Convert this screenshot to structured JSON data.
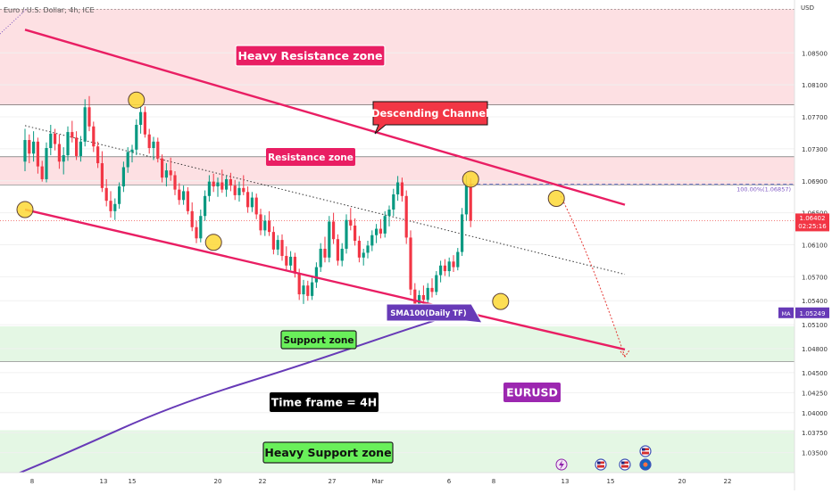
{
  "chart_data": {
    "type": "candlestick",
    "symbol_label": "Euro / U.S. Dollar, 4h, ICE",
    "currency": "USD",
    "y_ticks": [
      "1.08500",
      "1.08100",
      "1.07700",
      "1.07300",
      "1.06900",
      "1.06500",
      "1.06100",
      "1.05700",
      "1.05400",
      "1.05100",
      "1.04800",
      "1.04500",
      "1.04250",
      "1.04000",
      "1.03750",
      "1.03500"
    ],
    "x_ticks": [
      "8",
      "13",
      "15",
      "20",
      "22",
      "27",
      "Mar",
      "6",
      "8",
      "13",
      "15",
      "20",
      "22"
    ],
    "ylim": [
      1.0325,
      1.0905
    ],
    "price_tag": {
      "value": "1.06402",
      "countdown": "02:25:16",
      "price": 1.06402
    },
    "ma_tag": {
      "label": "MA",
      "value": "1.05249",
      "price": 1.05249
    },
    "fib_label": "100.00%(1.06857)",
    "fib_price": 1.06857,
    "zones": [
      {
        "label": "Heavy Resistance zone",
        "from": 1.0785,
        "to": 1.0905,
        "kind": "resistance"
      },
      {
        "label": "Resistance zone",
        "from": 1.0685,
        "to": 1.072,
        "kind": "resistance"
      },
      {
        "label": "Support zone",
        "from": 1.0464,
        "to": 1.0508,
        "kind": "support"
      },
      {
        "label": "Heavy Support zone",
        "from": 1.0325,
        "to": 1.0378,
        "kind": "support"
      }
    ],
    "annotations": {
      "channel": "Descending Channel",
      "sma": "SMA100(Daily TF)",
      "timeframe": "Time frame = 4H",
      "pair": "EURUSD"
    },
    "ohlc": [
      [
        1.0714,
        1.0755,
        1.0702,
        1.0741
      ],
      [
        1.0741,
        1.0748,
        1.0712,
        1.0724
      ],
      [
        1.0724,
        1.0752,
        1.0714,
        1.0739
      ],
      [
        1.0739,
        1.0744,
        1.0699,
        1.0708
      ],
      [
        1.0708,
        1.0715,
        1.0689,
        1.0692
      ],
      [
        1.0692,
        1.0738,
        1.0688,
        1.0731
      ],
      [
        1.0731,
        1.076,
        1.0722,
        1.0749
      ],
      [
        1.0749,
        1.0755,
        1.0728,
        1.0736
      ],
      [
        1.0736,
        1.0748,
        1.0705,
        1.0714
      ],
      [
        1.0714,
        1.0732,
        1.0698,
        1.0722
      ],
      [
        1.0722,
        1.0758,
        1.0715,
        1.0751
      ],
      [
        1.0751,
        1.0765,
        1.0738,
        1.0744
      ],
      [
        1.0744,
        1.0752,
        1.0716,
        1.0721
      ],
      [
        1.0721,
        1.0746,
        1.0714,
        1.0739
      ],
      [
        1.0739,
        1.0792,
        1.0733,
        1.0782
      ],
      [
        1.0782,
        1.0796,
        1.0752,
        1.0758
      ],
      [
        1.0758,
        1.0764,
        1.0726,
        1.0733
      ],
      [
        1.0733,
        1.0739,
        1.0706,
        1.0712
      ],
      [
        1.0712,
        1.0727,
        1.0676,
        1.0681
      ],
      [
        1.0681,
        1.0692,
        1.0658,
        1.0665
      ],
      [
        1.0665,
        1.0677,
        1.0644,
        1.0652
      ],
      [
        1.0652,
        1.0668,
        1.0641,
        1.0661
      ],
      [
        1.0661,
        1.0688,
        1.0655,
        1.0683
      ],
      [
        1.0683,
        1.0714,
        1.0676,
        1.0707
      ],
      [
        1.0707,
        1.0732,
        1.07,
        1.0726
      ],
      [
        1.0726,
        1.0735,
        1.0713,
        1.0729
      ],
      [
        1.0729,
        1.0767,
        1.0722,
        1.076
      ],
      [
        1.076,
        1.0784,
        1.0749,
        1.0776
      ],
      [
        1.0776,
        1.0783,
        1.0744,
        1.0748
      ],
      [
        1.0748,
        1.0755,
        1.0724,
        1.0731
      ],
      [
        1.0731,
        1.0745,
        1.0716,
        1.0739
      ],
      [
        1.0739,
        1.0744,
        1.0713,
        1.0718
      ],
      [
        1.0718,
        1.0723,
        1.0688,
        1.0694
      ],
      [
        1.0694,
        1.0712,
        1.0683,
        1.0703
      ],
      [
        1.0703,
        1.0719,
        1.069,
        1.0697
      ],
      [
        1.0697,
        1.0702,
        1.0672,
        1.0679
      ],
      [
        1.0679,
        1.0687,
        1.066,
        1.0666
      ],
      [
        1.0666,
        1.0684,
        1.066,
        1.0677
      ],
      [
        1.0677,
        1.0682,
        1.0648,
        1.0652
      ],
      [
        1.0652,
        1.0663,
        1.0627,
        1.0632
      ],
      [
        1.0632,
        1.064,
        1.0612,
        1.0618
      ],
      [
        1.0618,
        1.0654,
        1.0613,
        1.0646
      ],
      [
        1.0646,
        1.0678,
        1.064,
        1.0671
      ],
      [
        1.0671,
        1.0697,
        1.0664,
        1.0689
      ],
      [
        1.0689,
        1.0699,
        1.0676,
        1.0683
      ],
      [
        1.0683,
        1.0694,
        1.067,
        1.0688
      ],
      [
        1.0688,
        1.0704,
        1.0675,
        1.0679
      ],
      [
        1.0679,
        1.0696,
        1.067,
        1.0692
      ],
      [
        1.0692,
        1.07,
        1.0677,
        1.0684
      ],
      [
        1.0684,
        1.0691,
        1.0666,
        1.0672
      ],
      [
        1.0672,
        1.0689,
        1.0664,
        1.0681
      ],
      [
        1.0681,
        1.0697,
        1.0672,
        1.0676
      ],
      [
        1.0676,
        1.0683,
        1.065,
        1.0657
      ],
      [
        1.0657,
        1.0676,
        1.0651,
        1.0669
      ],
      [
        1.0669,
        1.0674,
        1.0642,
        1.0648
      ],
      [
        1.0648,
        1.0655,
        1.0622,
        1.0628
      ],
      [
        1.0628,
        1.0647,
        1.0621,
        1.064
      ],
      [
        1.064,
        1.0652,
        1.0621,
        1.0626
      ],
      [
        1.0626,
        1.0633,
        1.0598,
        1.0604
      ],
      [
        1.0604,
        1.0622,
        1.0597,
        1.0616
      ],
      [
        1.0616,
        1.0623,
        1.059,
        1.0596
      ],
      [
        1.0596,
        1.0608,
        1.0578,
        1.0584
      ],
      [
        1.0584,
        1.0602,
        1.0578,
        1.0595
      ],
      [
        1.0595,
        1.06,
        1.0569,
        1.0574
      ],
      [
        1.0574,
        1.058,
        1.0541,
        1.0548
      ],
      [
        1.0548,
        1.0566,
        1.0536,
        1.0559
      ],
      [
        1.0559,
        1.0565,
        1.054,
        1.0546
      ],
      [
        1.0546,
        1.057,
        1.0541,
        1.0563
      ],
      [
        1.0563,
        1.0588,
        1.0556,
        1.0582
      ],
      [
        1.0582,
        1.0612,
        1.0576,
        1.0605
      ],
      [
        1.0605,
        1.062,
        1.0588,
        1.0594
      ],
      [
        1.0594,
        1.0646,
        1.0588,
        1.0639
      ],
      [
        1.0639,
        1.065,
        1.0611,
        1.0617
      ],
      [
        1.0617,
        1.0623,
        1.0584,
        1.059
      ],
      [
        1.059,
        1.0612,
        1.0583,
        1.0605
      ],
      [
        1.0605,
        1.0648,
        1.0599,
        1.0641
      ],
      [
        1.0641,
        1.0656,
        1.0628,
        1.0634
      ],
      [
        1.0634,
        1.0643,
        1.0609,
        1.0615
      ],
      [
        1.0615,
        1.0621,
        1.0588,
        1.0594
      ],
      [
        1.0594,
        1.0605,
        1.0584,
        1.06
      ],
      [
        1.06,
        1.0615,
        1.0593,
        1.0609
      ],
      [
        1.0609,
        1.0628,
        1.0602,
        1.0622
      ],
      [
        1.0622,
        1.0636,
        1.0612,
        1.063
      ],
      [
        1.063,
        1.0642,
        1.0618,
        1.0624
      ],
      [
        1.0624,
        1.0652,
        1.0619,
        1.0646
      ],
      [
        1.0646,
        1.0659,
        1.0633,
        1.0654
      ],
      [
        1.0654,
        1.068,
        1.0646,
        1.0673
      ],
      [
        1.0673,
        1.0696,
        1.0665,
        1.0688
      ],
      [
        1.0688,
        1.0694,
        1.0664,
        1.0671
      ],
      [
        1.0671,
        1.0678,
        1.0611,
        1.0619
      ],
      [
        1.0619,
        1.0628,
        1.0547,
        1.0554
      ],
      [
        1.0554,
        1.0562,
        1.0529,
        1.0536
      ],
      [
        1.0536,
        1.0553,
        1.0527,
        1.0547
      ],
      [
        1.0547,
        1.0559,
        1.0533,
        1.0541
      ],
      [
        1.0541,
        1.0562,
        1.0536,
        1.0556
      ],
      [
        1.0556,
        1.0568,
        1.0544,
        1.0551
      ],
      [
        1.0551,
        1.0577,
        1.0547,
        1.0572
      ],
      [
        1.0572,
        1.059,
        1.0563,
        1.0584
      ],
      [
        1.0584,
        1.0592,
        1.0571,
        1.0577
      ],
      [
        1.0577,
        1.0594,
        1.057,
        1.0589
      ],
      [
        1.0589,
        1.0597,
        1.0576,
        1.0582
      ],
      [
        1.0582,
        1.0606,
        1.0578,
        1.0601
      ],
      [
        1.0601,
        1.0656,
        1.0596,
        1.0648
      ],
      [
        1.0648,
        1.0697,
        1.064,
        1.0686
      ],
      [
        1.0686,
        1.0693,
        1.0632,
        1.064
      ]
    ],
    "channel": {
      "upper": [
        [
          0,
          1.0879
        ],
        [
          140,
          1.066
        ]
      ],
      "lower": [
        [
          0,
          1.0654
        ],
        [
          140,
          1.0479
        ]
      ]
    },
    "midline": [
      [
        0,
        1.0759
      ],
      [
        140,
        1.0573
      ]
    ],
    "sma100": [
      [
        -2,
        1.0323
      ],
      [
        10,
        1.035
      ],
      [
        35,
        1.041
      ],
      [
        65,
        1.046
      ],
      [
        90,
        1.0506
      ],
      [
        104,
        1.0529
      ]
    ],
    "touch_points": [
      [
        0,
        1.0654
      ],
      [
        26,
        1.0791
      ],
      [
        44,
        1.0613
      ],
      [
        104,
        1.0692
      ],
      [
        111,
        1.0539
      ],
      [
        124,
        1.0668
      ]
    ],
    "projection": [
      [
        125,
        1.0671
      ],
      [
        132,
        1.0596
      ],
      [
        140,
        1.047
      ]
    ]
  }
}
